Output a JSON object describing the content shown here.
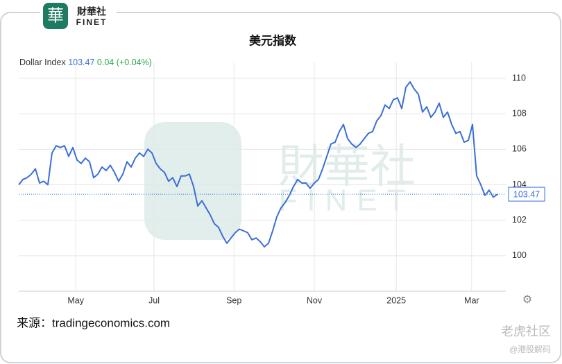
{
  "logo": {
    "brand": "財華社",
    "brand_en": "FINET"
  },
  "chart_data": {
    "type": "line",
    "title": "美元指数",
    "series_label": "Dollar Index",
    "last_value": 103.47,
    "change": "0.04",
    "change_label": "(+0.04%)",
    "series": [
      {
        "name": "Dollar Index",
        "color": "#3a6fd8",
        "values": [
          104.0,
          104.3,
          104.4,
          104.6,
          104.9,
          104.1,
          104.2,
          104.0,
          105.8,
          106.2,
          106.1,
          106.2,
          105.6,
          106.1,
          105.4,
          105.2,
          105.5,
          105.3,
          104.4,
          104.6,
          105.0,
          104.8,
          105.1,
          104.7,
          104.2,
          104.6,
          105.3,
          105.0,
          105.5,
          105.8,
          105.6,
          106.0,
          105.8,
          105.2,
          104.9,
          104.7,
          104.2,
          104.4,
          103.9,
          104.5,
          104.5,
          104.6,
          103.9,
          102.8,
          103.1,
          102.7,
          102.3,
          101.8,
          101.6,
          101.1,
          100.7,
          101.0,
          101.3,
          101.5,
          101.4,
          101.3,
          100.9,
          101.0,
          100.8,
          100.5,
          100.7,
          101.4,
          102.2,
          102.7,
          103.0,
          103.4,
          103.9,
          104.3,
          104.1,
          104.1,
          103.8,
          104.1,
          104.3,
          104.9,
          105.6,
          106.3,
          106.4,
          107.0,
          107.4,
          106.6,
          106.3,
          106.1,
          106.3,
          106.6,
          106.9,
          107.0,
          107.6,
          107.9,
          108.5,
          108.3,
          108.8,
          108.9,
          108.3,
          109.5,
          109.8,
          109.4,
          109.1,
          108.1,
          108.4,
          107.8,
          108.1,
          108.6,
          107.8,
          108.1,
          107.4,
          106.9,
          107.0,
          106.4,
          106.5,
          107.4,
          104.5,
          104.0,
          103.4,
          103.7,
          103.3,
          103.47
        ]
      }
    ],
    "xlim": [
      0,
      117
    ],
    "xticks": [
      {
        "value": 13.7,
        "label": "May"
      },
      {
        "value": 32.5,
        "label": "Jul"
      },
      {
        "value": 51.7,
        "label": "Sep"
      },
      {
        "value": 71,
        "label": "Nov"
      },
      {
        "value": 90.7,
        "label": "2025"
      },
      {
        "value": 108.8,
        "label": "Mar"
      }
    ],
    "ylim": [
      98,
      110.9
    ],
    "yticks": [
      100,
      102,
      104,
      106,
      108,
      110
    ],
    "grid": true
  },
  "source": "来源：tradingeconomics.com",
  "watermark": {
    "community": "老虎社区",
    "account": "@港股解码"
  }
}
